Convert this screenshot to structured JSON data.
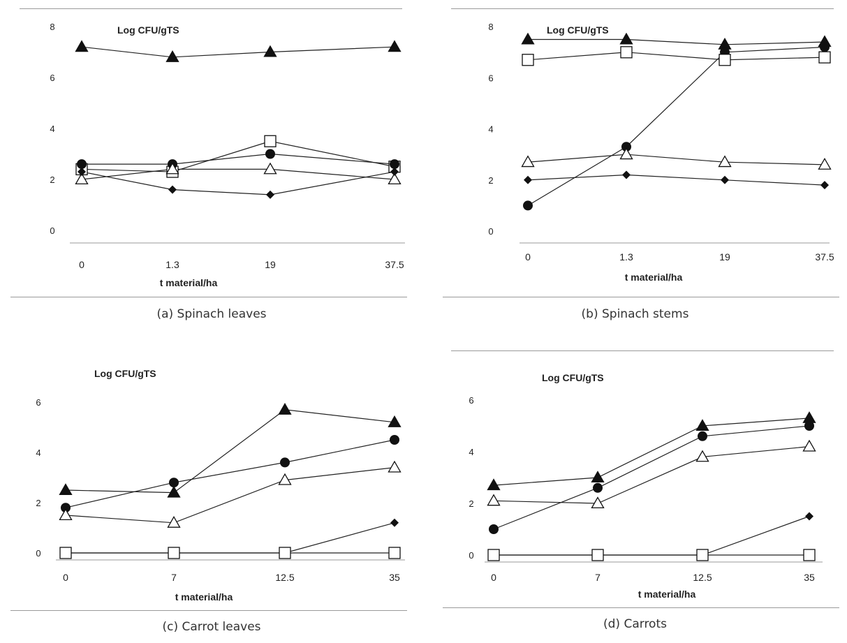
{
  "chart_data": [
    {
      "type": "line",
      "caption": "(a) Spinach leaves",
      "ylabel": "Log CFU/gTS",
      "xlabel": "t material/ha",
      "categories": [
        "0",
        "1.3",
        "19",
        "37.5"
      ],
      "yticks": [
        "0",
        "2",
        "4",
        "6",
        "8"
      ],
      "ylim": [
        0,
        8
      ],
      "grid": false,
      "series": [
        {
          "marker": "triangle-filled",
          "values": [
            7.2,
            6.8,
            7.0,
            7.2
          ]
        },
        {
          "marker": "square-open",
          "values": [
            2.4,
            2.3,
            3.5,
            2.5
          ]
        },
        {
          "marker": "circle-filled",
          "values": [
            2.6,
            2.6,
            3.0,
            2.6
          ]
        },
        {
          "marker": "triangle-open",
          "values": [
            2.0,
            2.4,
            2.4,
            2.0
          ]
        },
        {
          "marker": "diamond-filled",
          "values": [
            2.3,
            1.6,
            1.4,
            2.3
          ]
        }
      ]
    },
    {
      "type": "line",
      "caption": "(b) Spinach stems",
      "ylabel": "Log CFU/gTS",
      "xlabel": "t material/ha",
      "categories": [
        "0",
        "1.3",
        "19",
        "37.5"
      ],
      "yticks": [
        "0",
        "2",
        "4",
        "6",
        "8"
      ],
      "ylim": [
        0,
        8
      ],
      "grid": false,
      "series": [
        {
          "marker": "triangle-filled",
          "values": [
            7.5,
            7.5,
            7.3,
            7.4
          ]
        },
        {
          "marker": "circle-filled",
          "values": [
            1.0,
            3.3,
            7.0,
            7.2
          ]
        },
        {
          "marker": "square-open",
          "values": [
            6.7,
            7.0,
            6.7,
            6.8
          ]
        },
        {
          "marker": "triangle-open",
          "values": [
            2.7,
            3.0,
            2.7,
            2.6
          ]
        },
        {
          "marker": "diamond-filled",
          "values": [
            2.0,
            2.2,
            2.0,
            1.8
          ]
        }
      ]
    },
    {
      "type": "line",
      "caption": "(c) Carrot leaves",
      "ylabel": "Log CFU/gTS",
      "xlabel": "t material/ha",
      "categories": [
        "0",
        "7",
        "12.5",
        "35"
      ],
      "yticks": [
        "0",
        "2",
        "4",
        "6"
      ],
      "ylim": [
        0,
        6.8
      ],
      "grid": false,
      "series": [
        {
          "marker": "triangle-filled",
          "values": [
            2.5,
            2.4,
            5.7,
            5.2
          ]
        },
        {
          "marker": "circle-filled",
          "values": [
            1.8,
            2.8,
            3.6,
            4.5
          ]
        },
        {
          "marker": "triangle-open",
          "values": [
            1.5,
            1.2,
            2.9,
            3.4
          ]
        },
        {
          "marker": "diamond-filled",
          "values": [
            0.0,
            0.0,
            0.0,
            1.2
          ]
        },
        {
          "marker": "square-open",
          "values": [
            0.0,
            0.0,
            0.0,
            0.0
          ]
        }
      ]
    },
    {
      "type": "line",
      "caption": "(d) Carrots",
      "ylabel": "Log CFU/gTS",
      "xlabel": "t material/ha",
      "categories": [
        "0",
        "7",
        "12.5",
        "35"
      ],
      "yticks": [
        "0",
        "2",
        "4",
        "6"
      ],
      "ylim": [
        0,
        6
      ],
      "grid": false,
      "series": [
        {
          "marker": "triangle-filled",
          "values": [
            2.7,
            3.0,
            5.0,
            5.3
          ]
        },
        {
          "marker": "circle-filled",
          "values": [
            1.0,
            2.6,
            4.6,
            5.0
          ]
        },
        {
          "marker": "triangle-open",
          "values": [
            2.1,
            2.0,
            3.8,
            4.2
          ]
        },
        {
          "marker": "diamond-filled",
          "values": [
            0.0,
            0.0,
            0.0,
            1.5
          ]
        },
        {
          "marker": "square-open",
          "values": [
            0.0,
            0.0,
            0.0,
            0.0
          ]
        }
      ]
    }
  ]
}
